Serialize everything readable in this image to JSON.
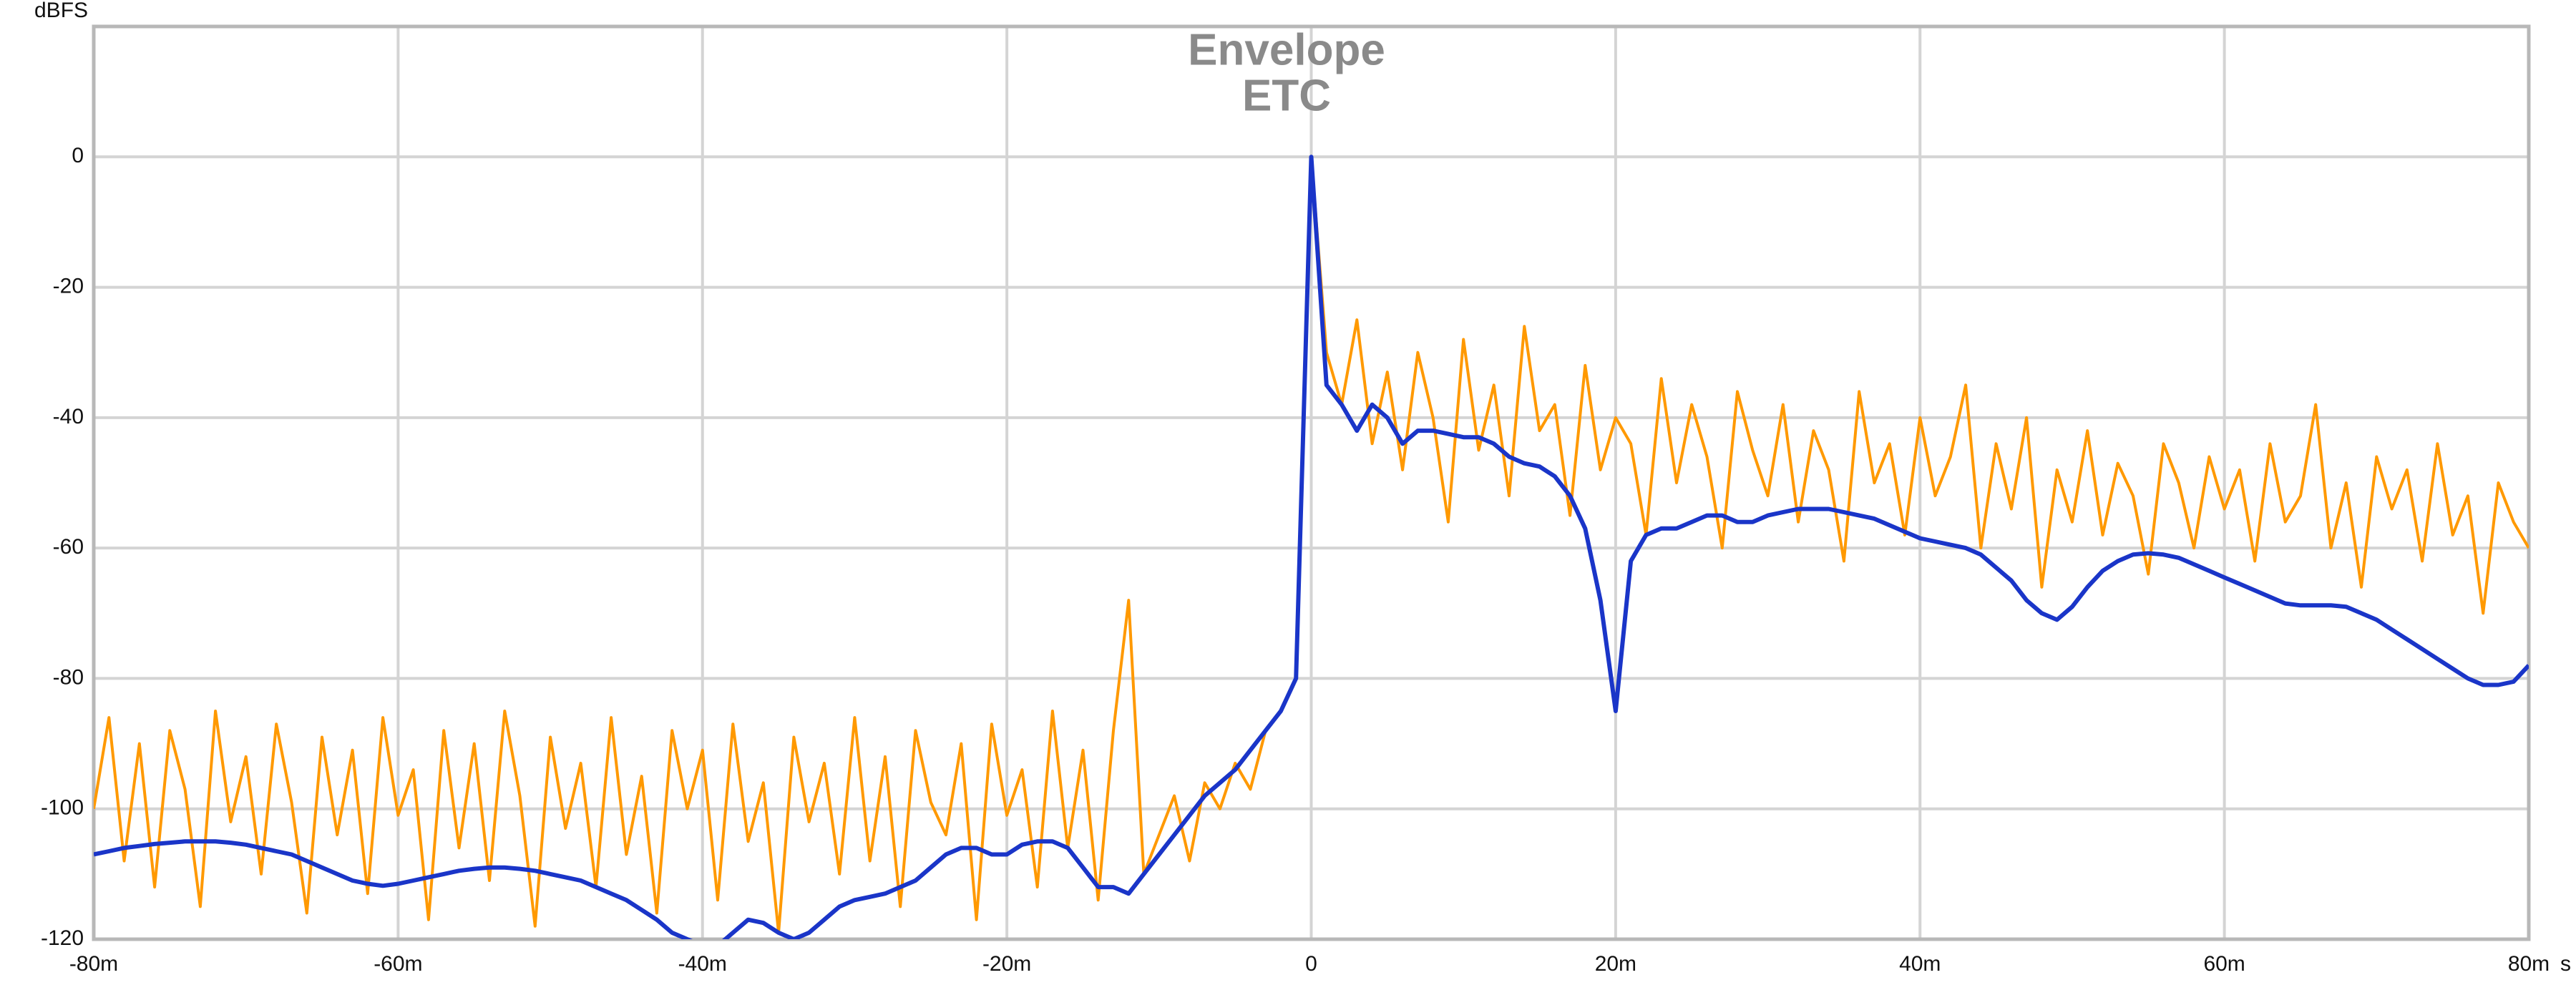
{
  "chart_data": {
    "type": "line",
    "ylabel": "dBFS",
    "xlabel": "s",
    "xlim": [
      -80,
      80
    ],
    "ylim": [
      -120,
      20
    ],
    "xticks": [
      {
        "value": -80,
        "label": "-80m"
      },
      {
        "value": -60,
        "label": "-60m"
      },
      {
        "value": -40,
        "label": "-40m"
      },
      {
        "value": -20,
        "label": "-20m"
      },
      0,
      {
        "value": 20,
        "label": "20m"
      },
      {
        "value": 40,
        "label": "40m"
      },
      {
        "value": 60,
        "label": "60m"
      },
      {
        "value": 80,
        "label": "80m"
      }
    ],
    "yticks": [
      -120,
      -100,
      -80,
      -60,
      -40,
      -20,
      0
    ],
    "grid": true,
    "x": [
      -80,
      -79,
      -78,
      -77,
      -76,
      -75,
      -74,
      -73,
      -72,
      -71,
      -70,
      -69,
      -68,
      -67,
      -66,
      -65,
      -64,
      -63,
      -62,
      -61,
      -60,
      -59,
      -58,
      -57,
      -56,
      -55,
      -54,
      -53,
      -52,
      -51,
      -50,
      -49,
      -48,
      -47,
      -46,
      -45,
      -44,
      -43,
      -42,
      -41,
      -40,
      -39,
      -38,
      -37,
      -36,
      -35,
      -34,
      -33,
      -32,
      -31,
      -30,
      -29,
      -28,
      -27,
      -26,
      -25,
      -24,
      -23,
      -22,
      -21,
      -20,
      -19,
      -18,
      -17,
      -16,
      -15,
      -14,
      -13,
      -12,
      -11,
      -10,
      -9,
      -8,
      -7,
      -6,
      -5,
      -4,
      -3,
      -2,
      -1,
      0,
      1,
      2,
      3,
      4,
      5,
      6,
      7,
      8,
      9,
      10,
      11,
      12,
      13,
      14,
      15,
      16,
      17,
      18,
      19,
      20,
      21,
      22,
      23,
      24,
      25,
      26,
      27,
      28,
      29,
      30,
      31,
      32,
      33,
      34,
      35,
      36,
      37,
      38,
      39,
      40,
      41,
      42,
      43,
      44,
      45,
      46,
      47,
      48,
      49,
      50,
      51,
      52,
      53,
      54,
      55,
      56,
      57,
      58,
      59,
      60,
      61,
      62,
      63,
      64,
      65,
      66,
      67,
      68,
      69,
      70,
      71,
      72,
      73,
      74,
      75,
      76,
      77,
      78,
      79,
      80
    ],
    "series": [
      {
        "name": "ETC",
        "color": "#ff9900",
        "values": [
          -100,
          -86,
          -108,
          -90,
          -112,
          -88,
          -97,
          -115,
          -85,
          -102,
          -92,
          -110,
          -87,
          -99,
          -116,
          -89,
          -104,
          -91,
          -113,
          -86,
          -101,
          -94,
          -117,
          -88,
          -106,
          -90,
          -111,
          -85,
          -98,
          -118,
          -89,
          -103,
          -93,
          -112,
          -86,
          -107,
          -95,
          -116,
          -88,
          -100,
          -91,
          -114,
          -87,
          -105,
          -96,
          -119,
          -89,
          -102,
          -93,
          -110,
          -86,
          -108,
          -92,
          -115,
          -88,
          -99,
          -104,
          -90,
          -117,
          -87,
          -101,
          -94,
          -112,
          -85,
          -106,
          -91,
          -114,
          -88,
          -68,
          -110,
          -104,
          -98,
          -108,
          -96,
          -100,
          -93,
          -97,
          -88,
          -85,
          -80,
          0,
          -30,
          -38,
          -25,
          -44,
          -33,
          -48,
          -30,
          -40,
          -56,
          -28,
          -45,
          -35,
          -52,
          -26,
          -42,
          -38,
          -55,
          -32,
          -48,
          -40,
          -44,
          -58,
          -34,
          -50,
          -38,
          -46,
          -60,
          -36,
          -45,
          -52,
          -38,
          -56,
          -42,
          -48,
          -62,
          -36,
          -50,
          -44,
          -58,
          -40,
          -52,
          -46,
          -35,
          -60,
          -44,
          -54,
          -40,
          -66,
          -48,
          -56,
          -42,
          -58,
          -47,
          -52,
          -64,
          -44,
          -50,
          -60,
          -46,
          -54,
          -48,
          -62,
          -44,
          -56,
          -52,
          -38,
          -60,
          -50,
          -66,
          -46,
          -54,
          -48,
          -62,
          -44,
          -58,
          -52,
          -70,
          -50,
          -56,
          -60
        ]
      },
      {
        "name": "Envelope",
        "color": "#1a35c8",
        "values": [
          -107,
          -106.5,
          -106,
          -105.7,
          -105.4,
          -105.2,
          -105,
          -105,
          -105,
          -105.2,
          -105.5,
          -106,
          -106.5,
          -107,
          -108,
          -109,
          -110,
          -111,
          -111.5,
          -111.8,
          -111.5,
          -111,
          -110.5,
          -110,
          -109.5,
          -109.2,
          -109,
          -109,
          -109.2,
          -109.5,
          -110,
          -110.5,
          -111,
          -112,
          -113,
          -114,
          -115.5,
          -117,
          -119,
          -120,
          -121,
          -121,
          -119,
          -117,
          -117.5,
          -119,
          -120,
          -119,
          -117,
          -115,
          -114,
          -113.5,
          -113,
          -112,
          -111,
          -109,
          -107,
          -106,
          -106,
          -107,
          -107,
          -105.5,
          -105,
          -105,
          -106,
          -109,
          -112,
          -112,
          -113,
          -110,
          -107,
          -104,
          -101,
          -98,
          -96,
          -94,
          -91,
          -88,
          -85,
          -80,
          0,
          -35,
          -38,
          -42,
          -38,
          -40,
          -44,
          -42,
          -42,
          -42.5,
          -43,
          -43,
          -44,
          -46,
          -47,
          -47.5,
          -49,
          -52,
          -57,
          -68,
          -85,
          -62,
          -58,
          -57,
          -57,
          -56,
          -55,
          -55,
          -56,
          -56,
          -55,
          -54.5,
          -54,
          -54,
          -54,
          -54.5,
          -55,
          -55.5,
          -56.5,
          -57.5,
          -58.5,
          -59,
          -59.5,
          -60,
          -61,
          -63,
          -65,
          -68,
          -70,
          -71,
          -69,
          -66,
          -63.5,
          -62,
          -61,
          -60.8,
          -61,
          -61.5,
          -62.5,
          -63.5,
          -64.5,
          -65.5,
          -66.5,
          -67.5,
          -68.5,
          -68.8,
          -68.8,
          -68.8,
          -69,
          -70,
          -71,
          -72.5,
          -74,
          -75.5,
          -77,
          -78.5,
          -80,
          -81,
          -81,
          -80.5,
          -78
        ]
      }
    ]
  }
}
